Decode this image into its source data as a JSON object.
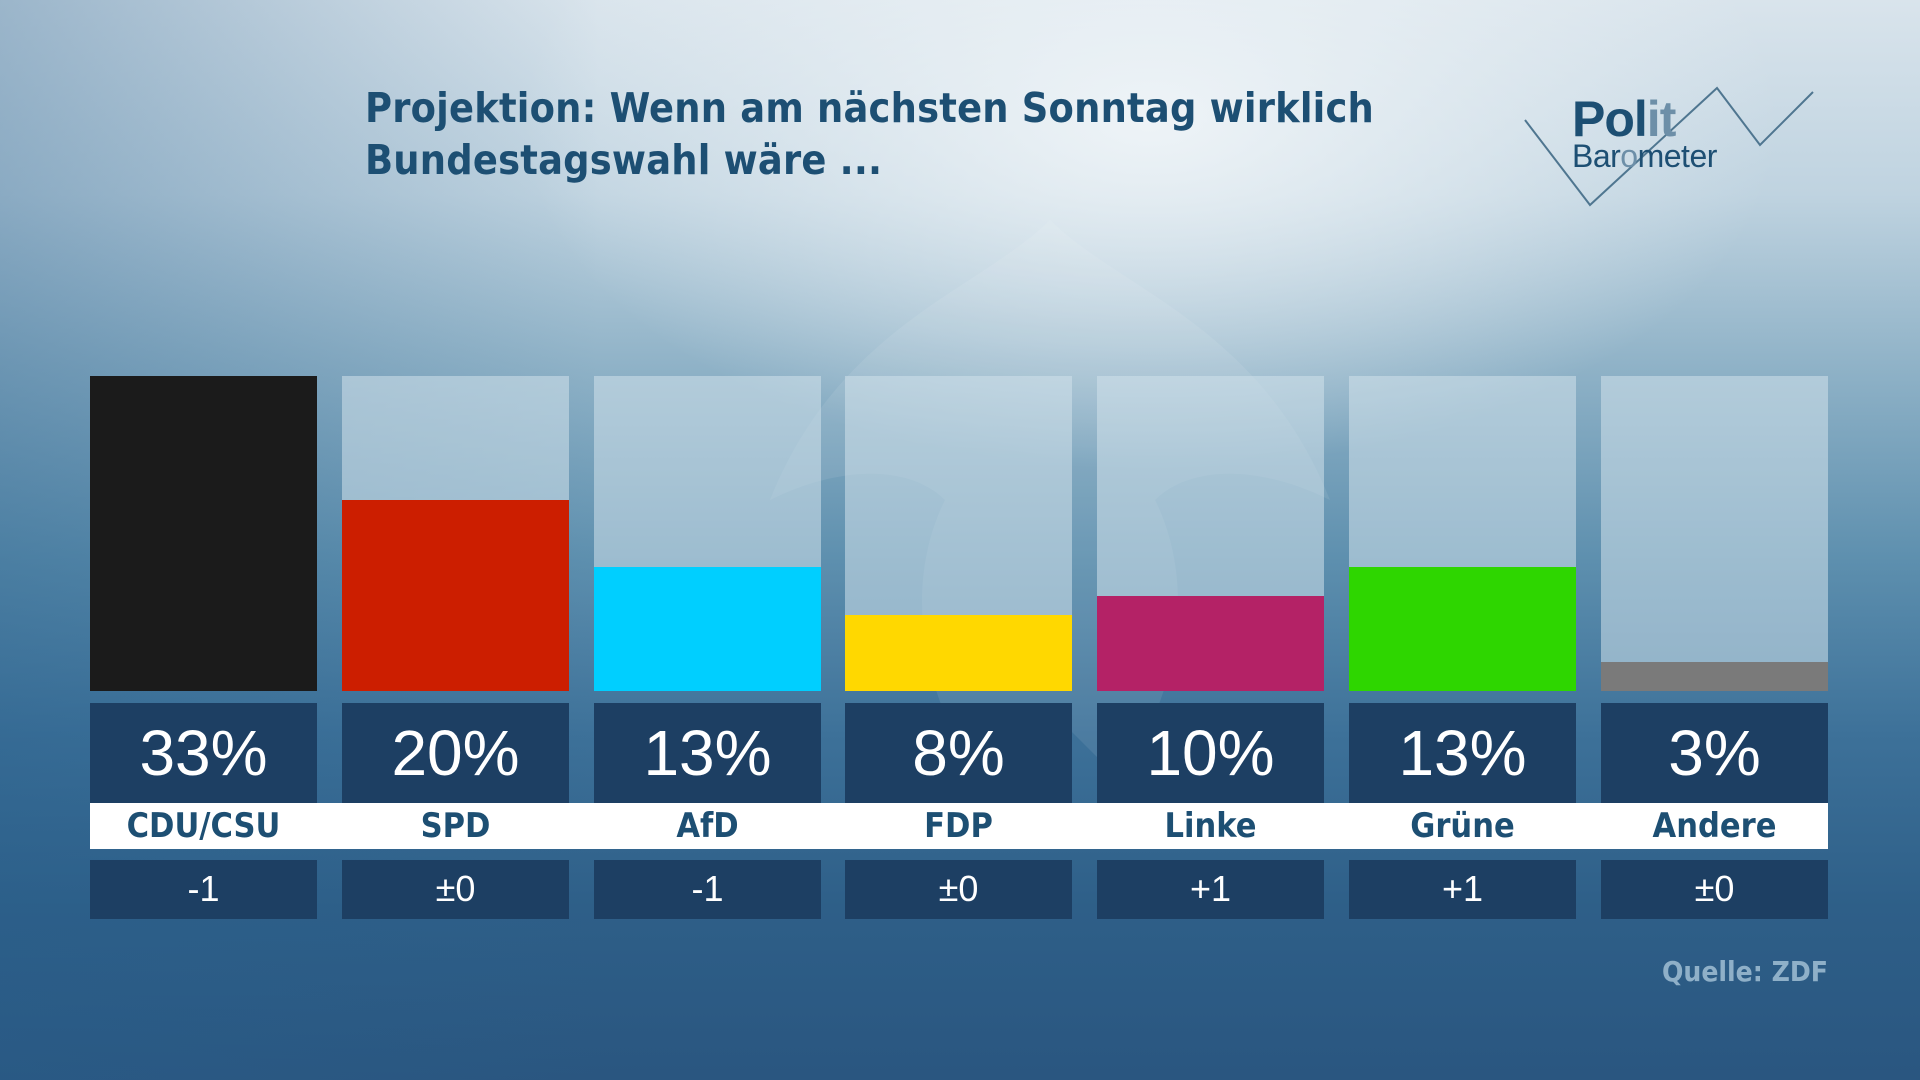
{
  "header": {
    "title_line1": "Projektion: Wenn am nächsten Sonntag wirklich",
    "title_line2": "Bundestagswahl wäre ..."
  },
  "logo": {
    "polit_dark": "Pol",
    "polit_light": "it",
    "baro_dark1": "Bar",
    "baro_light": "o",
    "baro_dark2": "meter"
  },
  "source": "Quelle: ZDF",
  "chart_data": {
    "type": "bar",
    "title": "Projektion: Wenn am nächsten Sonntag wirklich Bundestagswahl wäre ...",
    "xlabel": "",
    "ylabel": "",
    "ylim": [
      0,
      33
    ],
    "grid": false,
    "categories": [
      "CDU/CSU",
      "SPD",
      "AfD",
      "FDP",
      "Linke",
      "Grüne",
      "Andere"
    ],
    "values": [
      33,
      20,
      13,
      8,
      10,
      13,
      3
    ],
    "value_labels": [
      "33%",
      "20%",
      "13%",
      "8%",
      "10%",
      "13%",
      "3%"
    ],
    "changes": [
      "-1",
      "±0",
      "-1",
      "±0",
      "+1",
      "+1",
      "±0"
    ],
    "colors": [
      "#1b1b1b",
      "#cc1e00",
      "#00cfff",
      "#ffd800",
      "#b42266",
      "#2ed600",
      "#7a7a7a"
    ],
    "source": "Quelle: ZDF"
  }
}
